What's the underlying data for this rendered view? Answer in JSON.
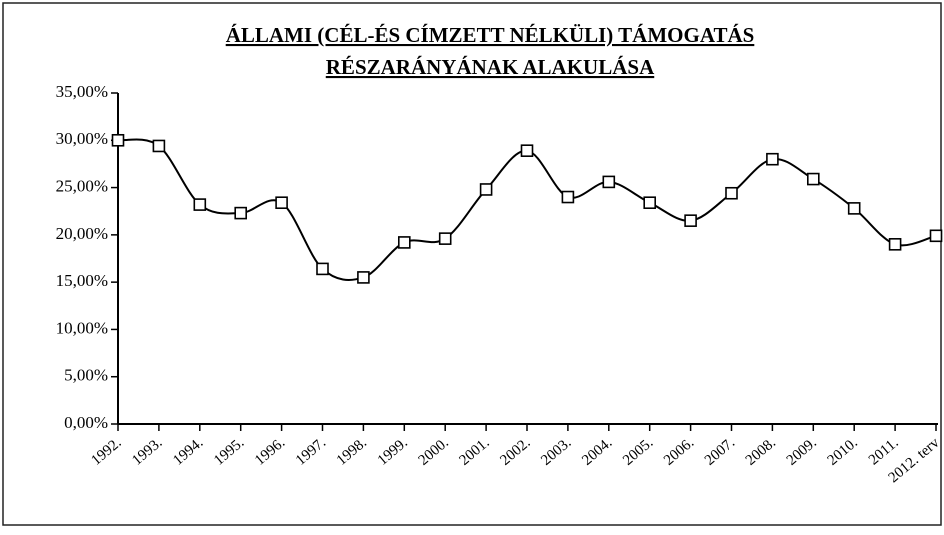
{
  "chart_data": {
    "type": "line",
    "title": [
      "ÁLLAMI (CÉL-ÉS CÍMZETT NÉLKÜLI) TÁMOGATÁS",
      "RÉSZARÁNYÁNAK ALAKULÁSA"
    ],
    "categories": [
      "1992.",
      "1993.",
      "1994.",
      "1995.",
      "1996.",
      "1997.",
      "1998.",
      "1999.",
      "2000.",
      "2001.",
      "2002.",
      "2003.",
      "2004.",
      "2005.",
      "2006.",
      "2007.",
      "2008.",
      "2009.",
      "2010.",
      "2011.",
      "2012. terv"
    ],
    "values": [
      30.0,
      29.4,
      23.2,
      22.3,
      23.4,
      16.4,
      15.5,
      19.2,
      19.6,
      24.8,
      28.9,
      24.0,
      25.6,
      23.4,
      21.5,
      24.4,
      28.0,
      25.9,
      22.8,
      19.0,
      19.9
    ],
    "color": "#000000",
    "ylim": [
      0,
      35
    ],
    "yticks": [
      {
        "value": 0,
        "label": "0,00%"
      },
      {
        "value": 5,
        "label": "5,00%"
      },
      {
        "value": 10,
        "label": "10,00%"
      },
      {
        "value": 15,
        "label": "15,00%"
      },
      {
        "value": 20,
        "label": "20,00%"
      },
      {
        "value": 25,
        "label": "25,00%"
      },
      {
        "value": 30,
        "label": "30,00%"
      },
      {
        "value": 35,
        "label": "35,00%"
      }
    ],
    "grid": false
  }
}
